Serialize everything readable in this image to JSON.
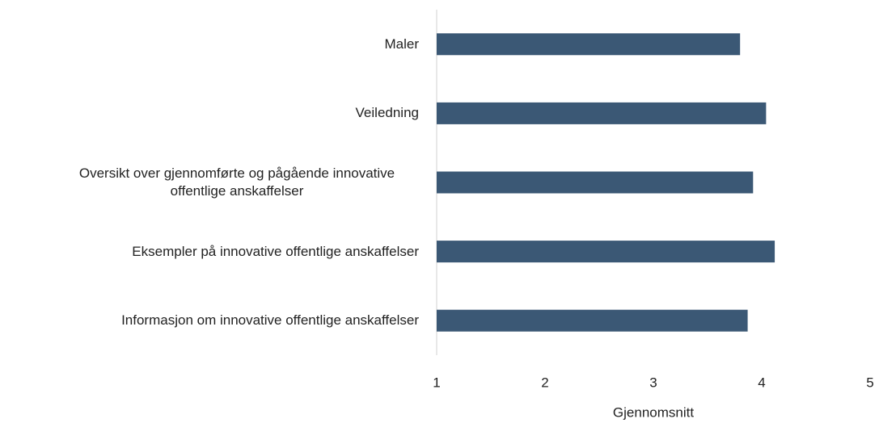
{
  "chart_data": {
    "type": "barh",
    "categories": [
      "Maler",
      "Veiledning",
      "Oversikt over gjennomførte og pågående innovative offentlige anskaffelser",
      "Eksempler på innovative offentlige anskaffelser",
      "Informasjon om innovative offentlige anskaffelser"
    ],
    "values": [
      3.8,
      4.04,
      3.92,
      4.12,
      3.87
    ],
    "color": "#3b5875",
    "xlabel": "Gjennomsnitt",
    "xlim": [
      1,
      5
    ],
    "xticks": [
      1,
      2,
      3,
      4,
      5
    ],
    "grid": false
  }
}
